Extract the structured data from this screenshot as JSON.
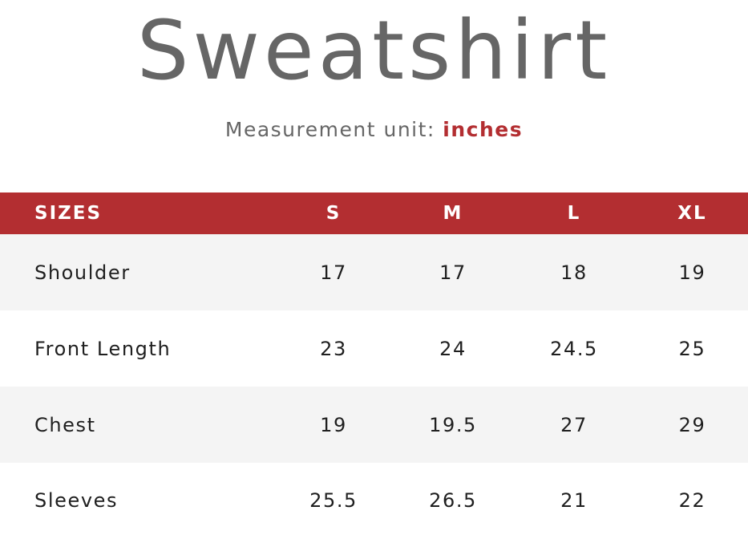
{
  "page": {
    "title": "Sweatshirt",
    "unit_label": "Measurement unit: ",
    "unit_value": "inches"
  },
  "colors": {
    "accent": "#b32e31",
    "title_gray": "#666666",
    "row_alt": "#f4f4f4"
  },
  "table": {
    "header": {
      "label": "SIZES",
      "sizes": [
        "S",
        "M",
        "L",
        "XL"
      ]
    },
    "rows": [
      {
        "label": "Shoulder",
        "values": [
          "17",
          "17",
          "18",
          "19"
        ]
      },
      {
        "label": "Front Length",
        "values": [
          "23",
          "24",
          "24.5",
          "25"
        ]
      },
      {
        "label": "Chest",
        "values": [
          "19",
          "19.5",
          "27",
          "29"
        ]
      },
      {
        "label": "Sleeves",
        "values": [
          "25.5",
          "26.5",
          "21",
          "22"
        ]
      }
    ]
  }
}
